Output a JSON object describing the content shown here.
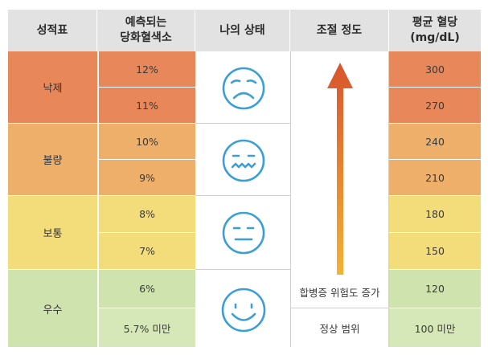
{
  "headers": {
    "grade": "성적표",
    "hba1c": [
      "예측되는",
      "당화혈색소"
    ],
    "status": "나의 상태",
    "control": "조절 정도",
    "glucose": [
      "평균 혈당",
      "(mg/dL)"
    ]
  },
  "grades": [
    {
      "label": "낙제",
      "hba1c": [
        "12%",
        "11%"
      ],
      "glucose": [
        "300",
        "270"
      ],
      "face": "very-sad-face-icon"
    },
    {
      "label": "불량",
      "hba1c": [
        "10%",
        "9%"
      ],
      "glucose": [
        "240",
        "210"
      ],
      "face": "worried-face-icon"
    },
    {
      "label": "보통",
      "hba1c": [
        "8%",
        "7%"
      ],
      "glucose": [
        "180",
        "150"
      ],
      "face": "neutral-face-icon"
    },
    {
      "label": "우수",
      "hba1c": [
        "6%",
        "5.7% 미만"
      ],
      "glucose": [
        "120",
        "100 미만"
      ],
      "face": "smiley-face-icon"
    }
  ],
  "control": {
    "arrow_label": "합병증 위험도 증가",
    "normal_label": "정상 범위"
  },
  "colors": {
    "header_bg": "#e2e2e2",
    "fail": "#e8875a",
    "poor": "#eeaf6a",
    "normal": "#f3dc7a",
    "good": "#cfe3ae",
    "good_light": "#d6e8b8",
    "face_stroke": "#3a9fd8",
    "arrow_top": "#d8542e",
    "arrow_bottom": "#f5b232"
  }
}
